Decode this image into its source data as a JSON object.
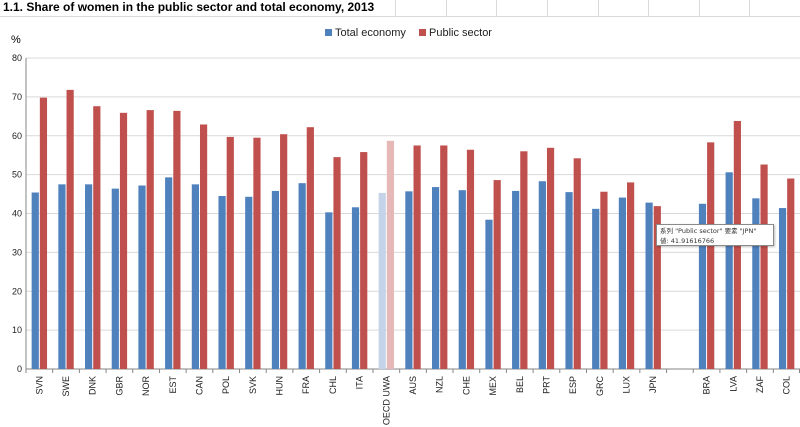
{
  "header": {
    "title": "1.1. Share of women in the public sector and total economy, 2013"
  },
  "tooltip": {
    "line1": "系列 \"Public sector\" 要素 \"JPN\"",
    "line2": "値: 41.91616766"
  },
  "chart_data": {
    "type": "bar",
    "ylabel": "%",
    "ylim": [
      0,
      80
    ],
    "yticks": [
      "0",
      "10",
      "20",
      "30",
      "40",
      "50",
      "60",
      "70",
      "80"
    ],
    "legend_position": "top-center",
    "grid": true,
    "categories": [
      "SVN",
      "SWE",
      "DNK",
      "GBR",
      "NOR",
      "EST",
      "CAN",
      "POL",
      "SVK",
      "HUN",
      "FRA",
      "CHL",
      "ITA",
      "OECD UWA",
      "AUS",
      "NZL",
      "CHE",
      "MEX",
      "BEL",
      "PRT",
      "ESP",
      "GRC",
      "LUX",
      "JPN",
      "",
      "BRA",
      "LVA",
      "ZAF",
      "COL"
    ],
    "series": [
      {
        "name": "Total economy",
        "color": "#4f81bd",
        "highlight_color": "#c5d3e8",
        "values": [
          45.4,
          47.5,
          47.5,
          46.4,
          47.2,
          49.3,
          47.5,
          44.5,
          44.3,
          45.8,
          47.8,
          40.3,
          41.6,
          45.3,
          45.7,
          46.8,
          46.0,
          38.4,
          45.8,
          48.3,
          45.5,
          41.2,
          44.1,
          42.8,
          null,
          42.5,
          50.6,
          43.9,
          41.4
        ]
      },
      {
        "name": "Public sector",
        "color": "#c0504d",
        "highlight_color": "#e6b9b8",
        "values": [
          69.8,
          71.8,
          67.6,
          65.9,
          66.6,
          66.4,
          62.9,
          59.7,
          59.5,
          60.4,
          62.2,
          54.5,
          55.8,
          58.7,
          57.5,
          57.5,
          56.4,
          48.6,
          56.0,
          56.9,
          54.2,
          45.6,
          48.0,
          41.9,
          null,
          58.3,
          63.8,
          52.6,
          49.0
        ]
      }
    ],
    "highlight_category": "OECD UWA"
  }
}
